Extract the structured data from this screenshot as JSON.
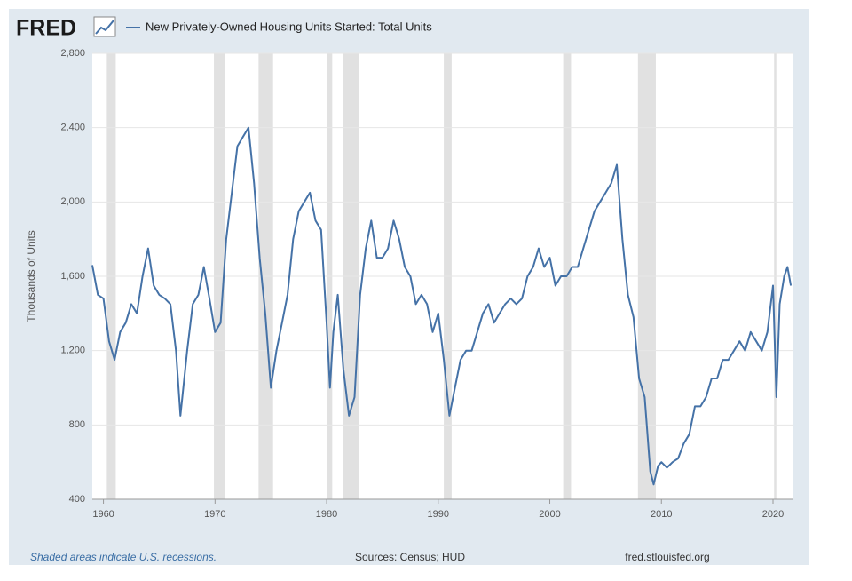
{
  "chart_data": {
    "type": "line",
    "logo": "FRED",
    "title": "New Privately-Owned Housing Units Started: Total Units",
    "y_label": "Thousands of Units",
    "note": "Shaded areas indicate U.S. recessions.",
    "source": "Sources: Census; HUD",
    "site": "fred.stlouisfed.org",
    "xlim": [
      1959,
      2021.75
    ],
    "xticks": [
      1960,
      1970,
      1980,
      1990,
      2000,
      2010,
      2020
    ],
    "ylim": [
      400,
      2800
    ],
    "yticks": [
      400,
      800,
      {
        "value": 1200,
        "label": "1,200"
      },
      {
        "value": 1600,
        "label": "1,600"
      },
      {
        "value": 2000,
        "label": "2,000"
      },
      {
        "value": 2400,
        "label": "2,400"
      },
      {
        "value": 2800,
        "label": "2,800"
      }
    ],
    "grid": true,
    "recessions": [
      [
        1960.3,
        1961.1
      ],
      [
        1969.9,
        1970.9
      ],
      [
        1973.9,
        1975.2
      ],
      [
        1980.0,
        1980.5
      ],
      [
        1981.5,
        1982.9
      ],
      [
        1990.5,
        1991.2
      ],
      [
        2001.2,
        2001.9
      ],
      [
        2007.9,
        2009.5
      ],
      [
        2020.1,
        2020.3
      ]
    ],
    "recession_color": "#e1e1e1",
    "x": [
      1959.0,
      1959.5,
      1960.0,
      1960.5,
      1961.0,
      1961.5,
      1962.0,
      1962.5,
      1963.0,
      1963.5,
      1964.0,
      1964.5,
      1965.0,
      1965.5,
      1966.0,
      1966.5,
      1966.9,
      1967.5,
      1968.0,
      1968.5,
      1969.0,
      1969.5,
      1970.0,
      1970.5,
      1971.0,
      1971.5,
      1972.0,
      1972.5,
      1973.0,
      1973.5,
      1974.0,
      1974.5,
      1975.0,
      1975.5,
      1976.0,
      1976.5,
      1977.0,
      1977.5,
      1978.0,
      1978.5,
      1979.0,
      1979.5,
      1980.0,
      1980.3,
      1980.6,
      1981.0,
      1981.5,
      1982.0,
      1982.5,
      1983.0,
      1983.5,
      1984.0,
      1984.5,
      1985.0,
      1985.5,
      1986.0,
      1986.5,
      1987.0,
      1987.5,
      1988.0,
      1988.5,
      1989.0,
      1989.5,
      1990.0,
      1990.5,
      1991.0,
      1991.5,
      1992.0,
      1992.5,
      1993.0,
      1993.5,
      1994.0,
      1994.5,
      1995.0,
      1995.5,
      1996.0,
      1996.5,
      1997.0,
      1997.5,
      1998.0,
      1998.5,
      1999.0,
      1999.5,
      2000.0,
      2000.5,
      2001.0,
      2001.5,
      2002.0,
      2002.5,
      2003.0,
      2003.5,
      2004.0,
      2004.5,
      2005.0,
      2005.5,
      2006.0,
      2006.5,
      2007.0,
      2007.5,
      2008.0,
      2008.5,
      2009.0,
      2009.3,
      2009.7,
      2010.0,
      2010.5,
      2011.0,
      2011.5,
      2012.0,
      2012.5,
      2013.0,
      2013.5,
      2014.0,
      2014.5,
      2015.0,
      2015.5,
      2016.0,
      2016.5,
      2017.0,
      2017.5,
      2018.0,
      2018.5,
      2019.0,
      2019.5,
      2020.0,
      2020.3,
      2020.6,
      2021.0,
      2021.3,
      2021.6
    ],
    "series": [
      {
        "name": "New Privately-Owned Housing Units Started: Total Units",
        "color": "#4572a7",
        "values": [
          1660,
          1500,
          1480,
          1250,
          1150,
          1300,
          1350,
          1450,
          1400,
          1600,
          1750,
          1550,
          1500,
          1480,
          1450,
          1200,
          850,
          1200,
          1450,
          1500,
          1650,
          1480,
          1300,
          1350,
          1800,
          2050,
          2300,
          2350,
          2400,
          2100,
          1700,
          1400,
          1000,
          1200,
          1350,
          1500,
          1800,
          1950,
          2000,
          2050,
          1900,
          1850,
          1350,
          1000,
          1300,
          1500,
          1100,
          850,
          950,
          1500,
          1750,
          1900,
          1700,
          1700,
          1750,
          1900,
          1800,
          1650,
          1600,
          1450,
          1500,
          1450,
          1300,
          1400,
          1150,
          850,
          1000,
          1150,
          1200,
          1200,
          1300,
          1400,
          1450,
          1350,
          1400,
          1450,
          1480,
          1450,
          1480,
          1600,
          1650,
          1750,
          1650,
          1700,
          1550,
          1600,
          1600,
          1650,
          1650,
          1750,
          1850,
          1950,
          2000,
          2050,
          2100,
          2200,
          1800,
          1500,
          1380,
          1050,
          950,
          550,
          480,
          580,
          600,
          570,
          600,
          620,
          700,
          750,
          900,
          900,
          950,
          1050,
          1050,
          1150,
          1150,
          1200,
          1250,
          1200,
          1300,
          1250,
          1200,
          1300,
          1550,
          950,
          1450,
          1600,
          1650,
          1550
        ]
      }
    ]
  }
}
